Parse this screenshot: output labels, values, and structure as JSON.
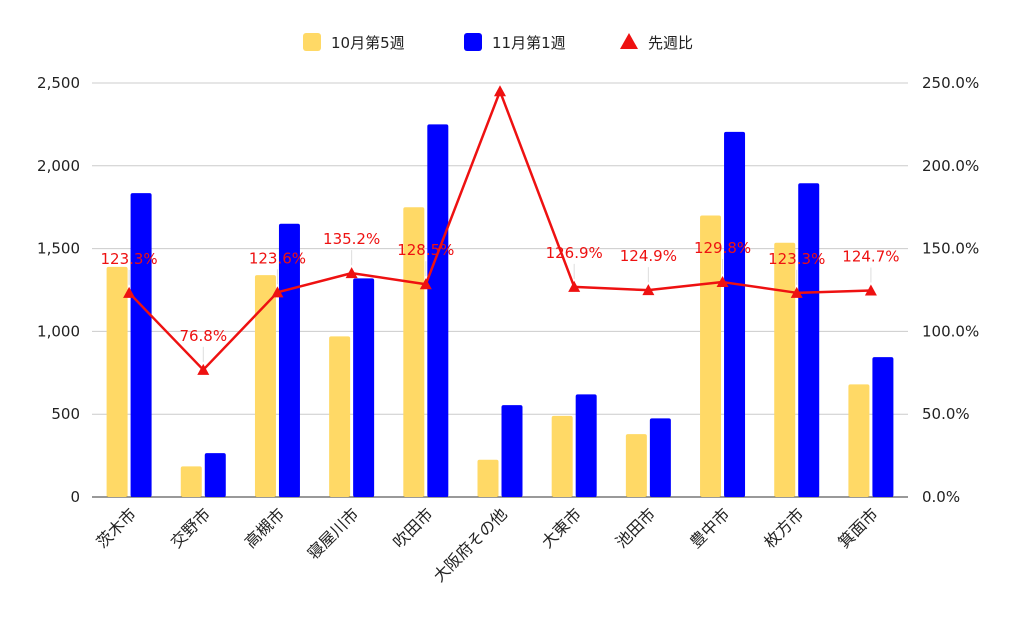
{
  "chart_data": {
    "type": "bar",
    "title": "",
    "xlabel": "",
    "ylabel": "",
    "categories": [
      "茨木市",
      "交野市",
      "高槻市",
      "寝屋川市",
      "吹田市",
      "大阪府その他",
      "大東市",
      "池田市",
      "豊中市",
      "枚方市",
      "箕面市"
    ],
    "series": [
      {
        "name": "10月第5週",
        "type": "bar",
        "axis": "left",
        "color": "#ffd966",
        "values": [
          1390,
          185,
          1340,
          970,
          1750,
          225,
          490,
          380,
          1700,
          1535,
          680
        ]
      },
      {
        "name": "11月第1週",
        "type": "bar",
        "axis": "left",
        "color": "#0000ff",
        "values": [
          1835,
          265,
          1650,
          1320,
          2250,
          555,
          620,
          475,
          2205,
          1895,
          845
        ]
      },
      {
        "name": "先週比",
        "type": "line",
        "axis": "right",
        "color": "#ee1111",
        "values": [
          123.3,
          76.8,
          123.6,
          135.2,
          128.5,
          245.0,
          126.9,
          124.9,
          129.8,
          123.3,
          124.7
        ],
        "labels": [
          "123.3%",
          "76.8%",
          "123.6%",
          "135.2%",
          "128.5%",
          "",
          "126.9%",
          "124.9%",
          "129.8%",
          "123.3%",
          "124.7%"
        ]
      }
    ],
    "y_left": {
      "min": 0,
      "max": 2500,
      "ticks": [
        0,
        500,
        1000,
        1500,
        2000,
        2500
      ],
      "tick_labels": [
        "0",
        "500",
        "1,000",
        "1,500",
        "2,000",
        "2,500"
      ]
    },
    "y_right": {
      "min": 0,
      "max": 250,
      "ticks": [
        0,
        50,
        100,
        150,
        200,
        250
      ],
      "tick_labels": [
        "0.0%",
        "50.0%",
        "100.0%",
        "150.0%",
        "200.0%",
        "250.0%"
      ]
    },
    "grid": true,
    "legend_position": "top-center"
  }
}
